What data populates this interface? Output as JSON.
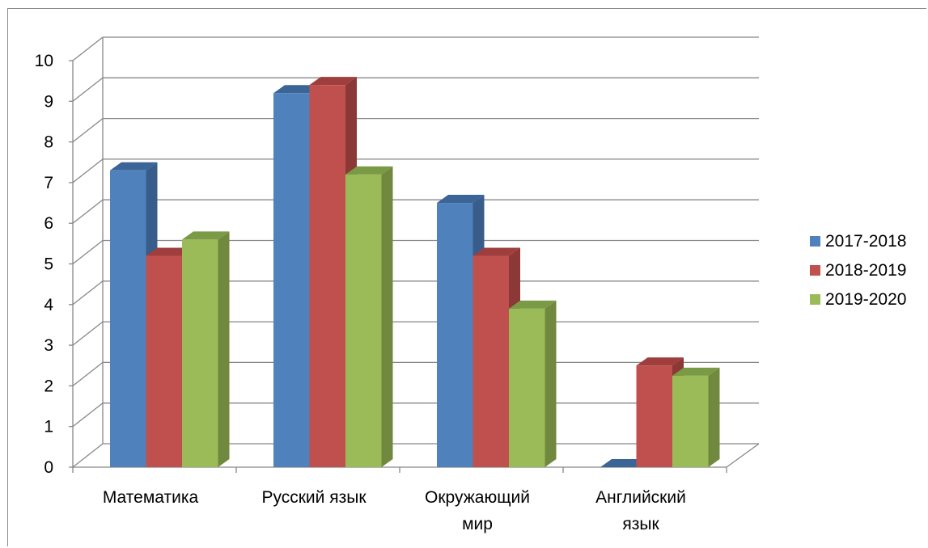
{
  "chart_data": {
    "type": "bar",
    "categories": [
      [
        "Математика"
      ],
      [
        "Русский язык"
      ],
      [
        "Окружающий",
        "мир"
      ],
      [
        "Английский",
        "язык"
      ]
    ],
    "series": [
      {
        "name": "2017-2018",
        "color": "#4F81BD",
        "side_color": "#385D8A",
        "top_color": "#3B6497",
        "values": [
          7.3,
          9.2,
          6.5,
          0
        ]
      },
      {
        "name": "2018-2019",
        "color": "#C0504D",
        "side_color": "#8C3836",
        "top_color": "#9E3F3D",
        "values": [
          5.2,
          9.4,
          5.2,
          2.5
        ]
      },
      {
        "name": "2019-2020",
        "color": "#9BBB59",
        "side_color": "#71893F",
        "top_color": "#7A9A45",
        "values": [
          5.6,
          7.2,
          3.9,
          2.25
        ]
      }
    ],
    "y_ticks": [
      "0",
      "1",
      "2",
      "3",
      "4",
      "5",
      "6",
      "7",
      "8",
      "9",
      "10"
    ],
    "ylim": [
      0,
      10
    ],
    "grid": true,
    "legend_position": "right"
  }
}
